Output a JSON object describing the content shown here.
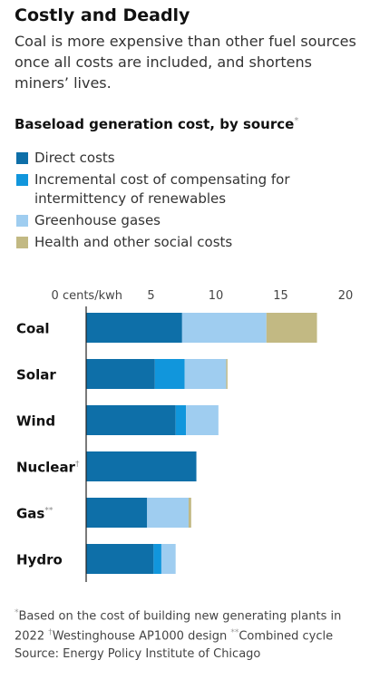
{
  "header": {
    "title": "Costly and Deadly",
    "subtitle": "Coal is more expensive than other fuel sources once all costs are included, and shortens miners’ lives."
  },
  "chart_title": "Baseload generation cost, by source",
  "chart_title_mark": "*",
  "legend": [
    {
      "label": "Direct costs",
      "color": "#0e6fa8"
    },
    {
      "label": "Incremental cost of compensating for intermittency of renewables",
      "color": "#1196dc"
    },
    {
      "label": "Greenhouse gases",
      "color": "#9fcdf0"
    },
    {
      "label": "Health and other social costs",
      "color": "#c2b983"
    }
  ],
  "footnotes": {
    "line1_mark": "*",
    "line1": "Based on the cost of building new generating plants in 2022",
    "line2_mark": "†",
    "line2": "Westinghouse AP1000 design",
    "line3_mark": "**",
    "line3": "Combined cycle",
    "source": "Source: Energy Policy Institute of Chicago"
  },
  "chart_data": {
    "type": "bar",
    "orientation": "horizontal",
    "stacked": true,
    "categories": [
      "Coal",
      "Solar",
      "Wind",
      "Nuclear",
      "Gas",
      "Hydro"
    ],
    "category_marks": [
      "",
      "",
      "",
      "†",
      "**",
      ""
    ],
    "series": [
      {
        "name": "Direct costs",
        "color": "#0e6fa8",
        "values": [
          7.4,
          5.3,
          6.9,
          8.5,
          4.7,
          5.2
        ]
      },
      {
        "name": "Incremental cost of compensating for intermittency of renewables",
        "color": "#1196dc",
        "values": [
          0,
          2.3,
          0.8,
          0,
          0,
          0.6
        ]
      },
      {
        "name": "Greenhouse gases",
        "color": "#9fcdf0",
        "values": [
          6.5,
          3.2,
          2.5,
          0,
          3.2,
          1.1
        ]
      },
      {
        "name": "Health and other social costs",
        "color": "#c2b983",
        "values": [
          3.9,
          0.1,
          0,
          0,
          0.2,
          0
        ]
      }
    ],
    "xlim": [
      0,
      20
    ],
    "x_ticks": [
      0,
      5,
      10,
      15,
      20
    ],
    "x_tick_labels": [
      "0 cents/kwh",
      "5",
      "10",
      "15",
      "20"
    ],
    "grid": false,
    "legend_position": "top"
  }
}
